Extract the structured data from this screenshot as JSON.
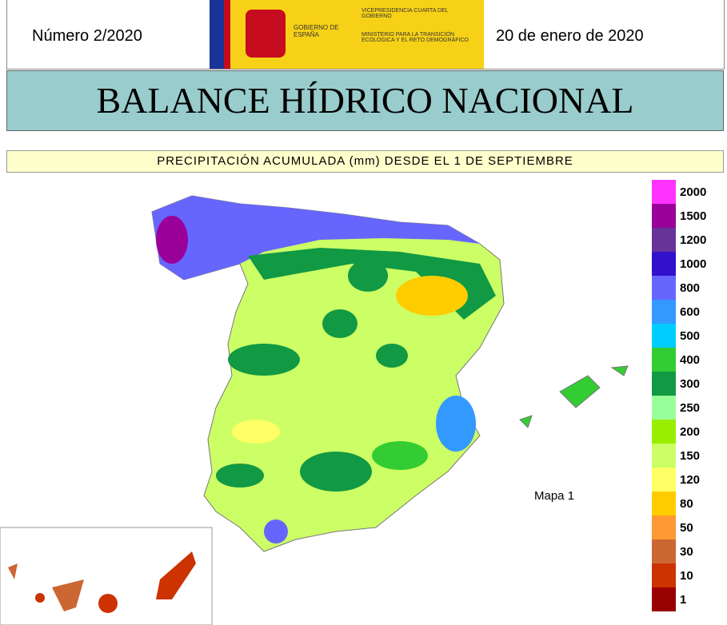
{
  "header": {
    "number": "Número 2/2020",
    "date": "20 de enero de 2020",
    "logo": {
      "government": "GOBIERNO DE ESPAÑA",
      "vice": "VICEPRESIDENCIA CUARTA DEL GOBIERNO",
      "ministry": "MINISTERIO PARA LA TRANSICIÓN ECOLÓGICA Y EL RETO DEMOGRÁFICO"
    }
  },
  "title": "BALANCE HÍDRICO NACIONAL",
  "subtitle": "PRECIPITACIÓN ACUMULADA (mm) DESDE EL 1 DE SEPTIEMBRE",
  "map": {
    "label": "Mapa 1",
    "legend": [
      {
        "value": 2000,
        "color": "#ff33ff"
      },
      {
        "value": 1500,
        "color": "#990099"
      },
      {
        "value": 1200,
        "color": "#663399"
      },
      {
        "value": 1000,
        "color": "#3311cc"
      },
      {
        "value": 800,
        "color": "#6666ff"
      },
      {
        "value": 600,
        "color": "#3399ff"
      },
      {
        "value": 500,
        "color": "#00ccff"
      },
      {
        "value": 400,
        "color": "#33cc33"
      },
      {
        "value": 300,
        "color": "#119944"
      },
      {
        "value": 250,
        "color": "#99ff99"
      },
      {
        "value": 200,
        "color": "#99ee00"
      },
      {
        "value": 150,
        "color": "#ccff66"
      },
      {
        "value": 120,
        "color": "#ffff66"
      },
      {
        "value": 80,
        "color": "#ffcc00"
      },
      {
        "value": 50,
        "color": "#ff9933"
      },
      {
        "value": 30,
        "color": "#cc6633"
      },
      {
        "value": 10,
        "color": "#cc3300"
      },
      {
        "value": 1,
        "color": "#990000"
      }
    ]
  }
}
